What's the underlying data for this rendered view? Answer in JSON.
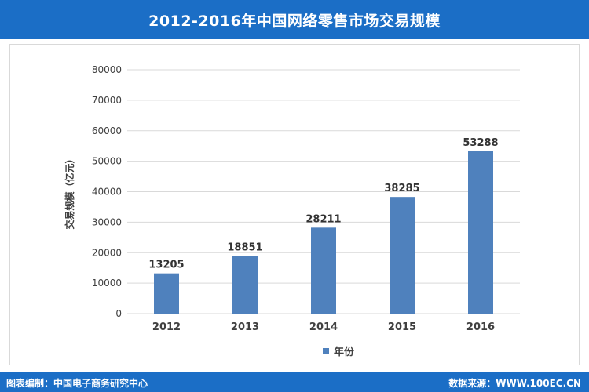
{
  "header": {
    "title": "2012-2016年中国网络零售市场交易规模"
  },
  "footer": {
    "left_text": "图表编制：中国电子商务研究中心",
    "right_text": "数据来源：WWW.100EC.CN"
  },
  "colors": {
    "bar": "#4f81bd",
    "banner": "#1b6ec6",
    "grid": "#d9d9d9"
  },
  "chart_data": {
    "type": "bar",
    "categories": [
      "2012",
      "2013",
      "2014",
      "2015",
      "2016"
    ],
    "series": [
      {
        "name": "年份",
        "values": [
          13205,
          18851,
          28211,
          38285,
          53288
        ]
      }
    ],
    "ylabel": "交易规模（亿元）",
    "xlabel": "",
    "ylim": [
      0,
      80000
    ],
    "yticks": [
      0,
      10000,
      20000,
      30000,
      40000,
      50000,
      60000,
      70000,
      80000
    ],
    "grid": true,
    "legend": "bottom"
  }
}
